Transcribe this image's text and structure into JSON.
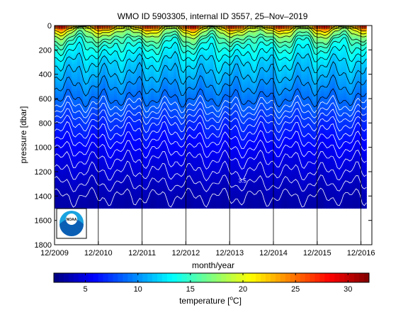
{
  "chart_data": {
    "type": "heatmap",
    "title": "WMO ID 5903305, internal ID 3557, 25–Nov–2019",
    "xlabel": "month/year",
    "ylabel": "pressure [dbar]",
    "colorbar_label": "temperature [",
    "colorbar_unit": "C]",
    "colorbar_degree": "o",
    "x_tick_labels": [
      "12/2009",
      "12/2010",
      "12/2011",
      "12/2012",
      "12/2013",
      "12/2014",
      "12/2015",
      "12/2016"
    ],
    "x_range": [
      "2009-12",
      "2017-03"
    ],
    "y_ticks": [
      0,
      200,
      400,
      600,
      800,
      1000,
      1200,
      1400,
      1600,
      1800
    ],
    "y_range": [
      0,
      1800
    ],
    "y_reversed": true,
    "data_max_pressure": 1500,
    "colorbar_ticks": [
      5,
      10,
      15,
      20,
      25,
      30
    ],
    "colorbar_range": [
      2,
      32
    ],
    "colormap": "jet",
    "contour_annotation": "3.5",
    "contour_levels": [
      3.5,
      4,
      4.5,
      5,
      5.5,
      6,
      6.5,
      7,
      7.5,
      8,
      8.5,
      9,
      10,
      11,
      12,
      13,
      14,
      15,
      16,
      18,
      20,
      22
    ],
    "temperature_profile_typical": {
      "pressure": [
        0,
        50,
        100,
        150,
        200,
        300,
        400,
        500,
        600,
        700,
        800,
        900,
        1000,
        1100,
        1200,
        1300,
        1400,
        1500
      ],
      "temperature": [
        24,
        19,
        16,
        14.5,
        13.5,
        12,
        11,
        10,
        9,
        8,
        7,
        6.3,
        5.6,
        5,
        4.5,
        4,
        3.5,
        3.2
      ]
    },
    "logo": "NOAA"
  },
  "colors": {
    "background": "#ffffff",
    "axis": "#000000",
    "contour_upper": "#000000",
    "contour_lower": "#ffffff"
  }
}
